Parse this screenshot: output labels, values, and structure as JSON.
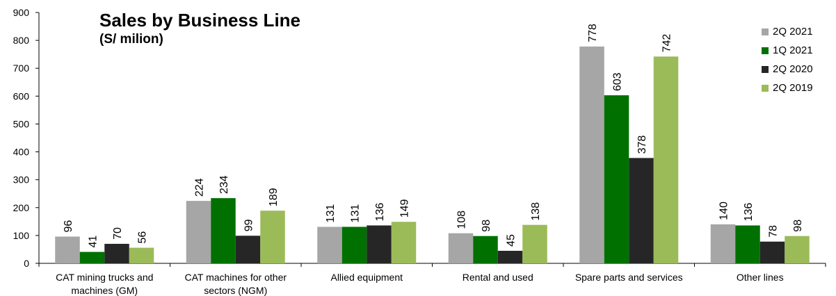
{
  "chart_data": {
    "type": "bar",
    "title": "Sales by Business Line",
    "subtitle": "(S/ milion)",
    "categories": [
      [
        "CAT mining trucks and",
        "machines (GM)"
      ],
      [
        "CAT machines for other",
        "sectors (NGM)"
      ],
      [
        "Allied equipment"
      ],
      [
        "Rental and used"
      ],
      [
        "Spare parts and services"
      ],
      [
        "Other lines"
      ]
    ],
    "series": [
      {
        "name": "2Q 2021",
        "color": "#a6a6a6",
        "values": [
          96,
          224,
          131,
          108,
          778,
          140
        ]
      },
      {
        "name": "1Q 2021",
        "color": "#007000",
        "values": [
          41,
          234,
          131,
          98,
          603,
          136
        ]
      },
      {
        "name": "2Q 2020",
        "color": "#262626",
        "values": [
          70,
          99,
          136,
          45,
          378,
          78
        ]
      },
      {
        "name": "2Q 2019",
        "color": "#9bbb59",
        "values": [
          56,
          189,
          149,
          138,
          742,
          98
        ]
      }
    ],
    "ylim": [
      0,
      900
    ],
    "yticks": [
      0,
      100,
      200,
      300,
      400,
      500,
      600,
      700,
      800,
      900
    ],
    "legend_position": "top-right",
    "grid": false
  }
}
